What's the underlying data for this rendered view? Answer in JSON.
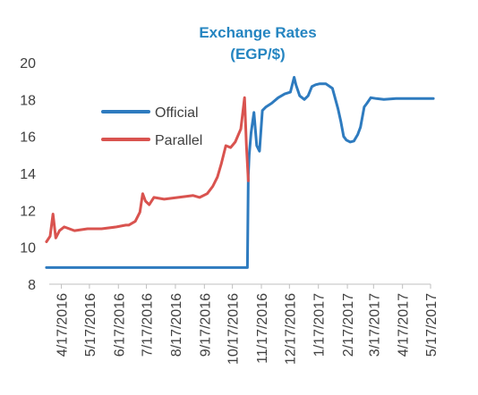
{
  "chart_data": {
    "type": "line",
    "title": "Exchange Rates",
    "subtitle": "(EGP/$)",
    "xlabel": "",
    "ylabel": "",
    "ylim": [
      8,
      20
    ],
    "y_ticks": [
      8,
      10,
      12,
      14,
      16,
      18,
      20
    ],
    "x_ticks": [
      "4/17/2016",
      "5/17/2016",
      "6/17/2016",
      "7/17/2016",
      "8/17/2016",
      "9/17/2016",
      "10/17/2016",
      "11/17/2016",
      "12/17/2016",
      "1/17/2017",
      "2/17/2017",
      "3/17/2017",
      "4/17/2017",
      "5/17/2017"
    ],
    "grid": false,
    "legend_position": "upper-left",
    "series": [
      {
        "name": "Official",
        "color": "#2e7bbf",
        "x": [
          "2016-04-01",
          "2016-04-20",
          "2016-05-20",
          "2016-06-20",
          "2016-07-20",
          "2016-08-20",
          "2016-09-20",
          "2016-10-20",
          "2016-11-02",
          "2016-11-03",
          "2016-11-04",
          "2016-11-06",
          "2016-11-09",
          "2016-11-12",
          "2016-11-15",
          "2016-11-18",
          "2016-11-22",
          "2016-11-28",
          "2016-12-05",
          "2016-12-12",
          "2016-12-18",
          "2016-12-22",
          "2016-12-24",
          "2016-12-28",
          "2017-01-02",
          "2017-01-06",
          "2017-01-10",
          "2017-01-14",
          "2017-01-18",
          "2017-01-25",
          "2017-02-01",
          "2017-02-07",
          "2017-02-10",
          "2017-02-13",
          "2017-02-16",
          "2017-02-20",
          "2017-02-24",
          "2017-02-28",
          "2017-03-03",
          "2017-03-07",
          "2017-03-10",
          "2017-03-14",
          "2017-03-20",
          "2017-03-28",
          "2017-04-10",
          "2017-04-30",
          "2017-05-20"
        ],
        "values": [
          8.9,
          8.9,
          8.9,
          8.9,
          8.9,
          8.9,
          8.9,
          8.9,
          8.9,
          13.9,
          15.0,
          16.2,
          17.3,
          15.5,
          15.2,
          17.4,
          17.6,
          17.8,
          18.1,
          18.3,
          18.4,
          19.2,
          18.8,
          18.2,
          18.0,
          18.2,
          18.7,
          18.8,
          18.85,
          18.85,
          18.6,
          17.5,
          16.8,
          16.0,
          15.8,
          15.7,
          15.75,
          16.1,
          16.5,
          17.6,
          17.8,
          18.1,
          18.05,
          18.0,
          18.05,
          18.05,
          18.05
        ]
      },
      {
        "name": "Parallel",
        "color": "#d9534f",
        "x": [
          "2016-04-01",
          "2016-04-05",
          "2016-04-08",
          "2016-04-11",
          "2016-04-15",
          "2016-04-20",
          "2016-05-01",
          "2016-05-15",
          "2016-05-30",
          "2016-06-15",
          "2016-06-25",
          "2016-06-28",
          "2016-07-05",
          "2016-07-10",
          "2016-07-13",
          "2016-07-16",
          "2016-07-20",
          "2016-07-25",
          "2016-08-05",
          "2016-08-20",
          "2016-09-05",
          "2016-09-12",
          "2016-09-20",
          "2016-09-26",
          "2016-10-01",
          "2016-10-05",
          "2016-10-10",
          "2016-10-15",
          "2016-10-20",
          "2016-10-26",
          "2016-10-30",
          "2016-11-01",
          "2016-11-03"
        ],
        "values": [
          10.3,
          10.6,
          11.8,
          10.5,
          10.9,
          11.1,
          10.9,
          11.0,
          11.0,
          11.1,
          11.2,
          11.2,
          11.4,
          11.9,
          12.9,
          12.5,
          12.3,
          12.7,
          12.6,
          12.7,
          12.8,
          12.7,
          12.9,
          13.3,
          13.8,
          14.5,
          15.5,
          15.4,
          15.7,
          16.4,
          18.1,
          15.5,
          13.6
        ]
      }
    ]
  }
}
